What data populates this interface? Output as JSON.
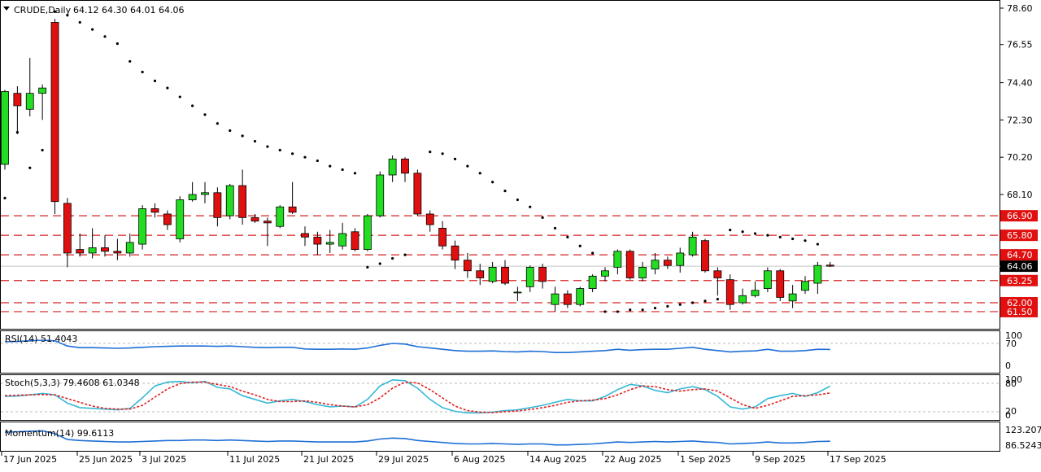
{
  "symbol_header": {
    "symbol": "CRUDE,Daily",
    "ohlc": "64.12 64.30 64.01 64.06"
  },
  "indicators": {
    "rsi": {
      "label": "RSI(14) 51.4043",
      "ticks": [
        "100",
        "70",
        "0"
      ],
      "color": "#1f6fd6"
    },
    "stoch": {
      "label": "Stoch(5,3,3) 79.4608 61.0348",
      "ticks": [
        "100",
        "80",
        "20",
        "0"
      ],
      "main_color": "#35b8d6",
      "signal_color": "#e02020"
    },
    "momentum": {
      "label": "Momentum(14) 99.6113",
      "ticks": [
        "123.207",
        "86.5243"
      ],
      "color": "#1f6fd6"
    }
  },
  "colors": {
    "up": "#22dd22",
    "down": "#e01010",
    "level_line": "#d62020",
    "level_box": "#e01010",
    "sar": "#000000",
    "current_price_box": "#000000"
  },
  "chart_data": {
    "type": "candlestick",
    "title": "CRUDE,Daily",
    "y_axis": {
      "range": [
        60.9,
        78.6
      ],
      "ticks": [
        "78.60",
        "76.55",
        "74.40",
        "72.30",
        "70.20",
        "68.10"
      ]
    },
    "x_axis": {
      "labels": [
        "17 Jun 2025",
        "25 Jun 2025",
        "3 Jul 2025",
        "11 Jul 2025",
        "21 Jul 2025",
        "29 Jul 2025",
        "6 Aug 2025",
        "14 Aug 2025",
        "22 Aug 2025",
        "1 Sep 2025",
        "9 Sep 2025",
        "17 Sep 2025"
      ]
    },
    "current_price": "64.06",
    "levels": [
      "66.90",
      "65.80",
      "64.70",
      "63.25",
      "62.00",
      "61.50"
    ],
    "candles": [
      [
        69.8,
        73.9,
        74.0,
        69.5
      ],
      [
        73.8,
        73.1,
        74.2,
        71.5
      ],
      [
        72.9,
        73.8,
        75.8,
        72.5
      ],
      [
        73.8,
        74.1,
        74.3,
        72.3
      ],
      [
        77.8,
        67.7,
        78.0,
        67.0
      ],
      [
        67.6,
        64.8,
        67.9,
        64.0
      ],
      [
        65.0,
        64.8,
        65.9,
        64.6
      ],
      [
        64.8,
        65.1,
        66.2,
        64.5
      ],
      [
        65.1,
        64.9,
        65.8,
        64.6
      ],
      [
        64.9,
        64.8,
        65.6,
        64.4
      ],
      [
        64.8,
        65.4,
        65.9,
        64.6
      ],
      [
        65.3,
        67.3,
        67.5,
        65.0
      ],
      [
        67.3,
        67.1,
        67.6,
        66.8
      ],
      [
        67.0,
        66.4,
        67.2,
        66.1
      ],
      [
        65.6,
        67.8,
        68.0,
        65.4
      ],
      [
        67.8,
        68.1,
        68.8,
        67.7
      ],
      [
        68.1,
        68.2,
        68.8,
        67.6
      ],
      [
        68.2,
        66.8,
        68.5,
        66.3
      ],
      [
        66.9,
        68.6,
        68.7,
        66.7
      ],
      [
        68.6,
        66.8,
        69.5,
        66.4
      ],
      [
        66.8,
        66.6,
        67.0,
        66.5
      ],
      [
        66.6,
        66.5,
        66.8,
        65.2
      ],
      [
        66.3,
        67.4,
        67.5,
        66.2
      ],
      [
        67.4,
        67.1,
        68.8,
        67.0
      ],
      [
        65.9,
        65.7,
        66.3,
        65.2
      ],
      [
        65.7,
        65.3,
        66.0,
        64.7
      ],
      [
        65.3,
        65.4,
        66.1,
        64.8
      ],
      [
        65.2,
        65.9,
        66.5,
        65.0
      ],
      [
        66.0,
        65.0,
        66.2,
        64.9
      ],
      [
        65.0,
        66.9,
        67.0,
        64.9
      ],
      [
        66.9,
        69.2,
        69.4,
        66.8
      ],
      [
        69.2,
        70.1,
        70.3,
        68.8
      ],
      [
        70.1,
        69.3,
        70.2,
        68.8
      ],
      [
        69.3,
        67.0,
        69.5,
        66.9
      ],
      [
        67.0,
        66.4,
        67.2,
        66.0
      ],
      [
        66.2,
        65.2,
        66.6,
        65.0
      ],
      [
        65.2,
        64.4,
        65.5,
        63.9
      ],
      [
        64.4,
        63.8,
        64.8,
        63.4
      ],
      [
        63.8,
        63.4,
        64.2,
        63.0
      ],
      [
        63.2,
        64.0,
        64.3,
        63.1
      ],
      [
        64.0,
        63.1,
        64.4,
        63.0
      ],
      [
        62.6,
        62.6,
        62.9,
        62.1
      ],
      [
        62.9,
        64.0,
        64.1,
        62.6
      ],
      [
        64.0,
        63.2,
        64.2,
        62.8
      ],
      [
        61.9,
        62.5,
        62.9,
        61.5
      ],
      [
        62.5,
        61.9,
        62.7,
        61.7
      ],
      [
        61.9,
        62.8,
        62.9,
        61.8
      ],
      [
        62.8,
        63.5,
        63.6,
        62.6
      ],
      [
        63.5,
        63.8,
        64.0,
        63.2
      ],
      [
        64.0,
        64.9,
        65.0,
        63.6
      ],
      [
        64.9,
        63.4,
        65.0,
        63.3
      ],
      [
        63.4,
        64.0,
        64.3,
        63.2
      ],
      [
        63.9,
        64.4,
        64.8,
        63.6
      ],
      [
        64.4,
        64.1,
        64.6,
        63.9
      ],
      [
        64.1,
        64.8,
        65.1,
        63.7
      ],
      [
        64.7,
        65.7,
        66.0,
        64.6
      ],
      [
        65.5,
        63.8,
        65.6,
        63.7
      ],
      [
        63.8,
        63.4,
        64.0,
        62.4
      ],
      [
        63.3,
        61.9,
        63.6,
        61.6
      ],
      [
        62.0,
        62.4,
        62.8,
        61.9
      ],
      [
        62.4,
        62.7,
        63.2,
        62.3
      ],
      [
        62.8,
        63.8,
        64.0,
        62.6
      ],
      [
        63.8,
        62.3,
        63.9,
        62.1
      ],
      [
        62.1,
        62.5,
        63.0,
        61.7
      ],
      [
        62.7,
        63.2,
        63.5,
        62.5
      ],
      [
        63.1,
        64.1,
        64.3,
        62.5
      ],
      [
        64.12,
        64.06,
        64.3,
        64.01
      ]
    ],
    "sar": [
      [
        0,
        67.9
      ],
      [
        1,
        71.6
      ],
      [
        2,
        69.6
      ],
      [
        3,
        70.6
      ],
      [
        4,
        78.4
      ],
      [
        5,
        78.2
      ],
      [
        6,
        77.8
      ],
      [
        7,
        77.4
      ],
      [
        8,
        77.0
      ],
      [
        9,
        76.6
      ],
      [
        10,
        75.6
      ],
      [
        11,
        75.0
      ],
      [
        12,
        74.5
      ],
      [
        13,
        74.1
      ],
      [
        14,
        73.6
      ],
      [
        15,
        73.1
      ],
      [
        16,
        72.6
      ],
      [
        17,
        72.1
      ],
      [
        18,
        71.7
      ],
      [
        19,
        71.4
      ],
      [
        20,
        71.1
      ],
      [
        21,
        70.8
      ],
      [
        22,
        70.6
      ],
      [
        23,
        70.4
      ],
      [
        24,
        70.2
      ],
      [
        25,
        70.0
      ],
      [
        26,
        69.7
      ],
      [
        27,
        69.5
      ],
      [
        28,
        69.3
      ],
      [
        29,
        64.0
      ],
      [
        30,
        64.2
      ],
      [
        31,
        64.5
      ],
      [
        32,
        64.7
      ],
      [
        34,
        70.5
      ],
      [
        35,
        70.4
      ],
      [
        36,
        70.1
      ],
      [
        37,
        69.7
      ],
      [
        38,
        69.3
      ],
      [
        39,
        68.8
      ],
      [
        40,
        68.3
      ],
      [
        41,
        67.8
      ],
      [
        42,
        67.4
      ],
      [
        43,
        66.8
      ],
      [
        44,
        66.2
      ],
      [
        45,
        65.7
      ],
      [
        46,
        65.2
      ],
      [
        47,
        64.8
      ],
      [
        48,
        61.5
      ],
      [
        49,
        61.5
      ],
      [
        50,
        61.6
      ],
      [
        51,
        61.6
      ],
      [
        52,
        61.7
      ],
      [
        53,
        61.8
      ],
      [
        54,
        61.9
      ],
      [
        55,
        62.0
      ],
      [
        56,
        62.1
      ],
      [
        57,
        62.2
      ],
      [
        58,
        66.1
      ],
      [
        59,
        66.0
      ],
      [
        60,
        65.9
      ],
      [
        61,
        65.8
      ],
      [
        62,
        65.7
      ],
      [
        63,
        65.6
      ],
      [
        64,
        65.5
      ],
      [
        65,
        65.3
      ]
    ],
    "rsi": [
      75,
      76,
      78,
      80,
      78,
      62,
      57,
      57,
      56,
      55,
      56,
      58,
      60,
      61,
      62,
      62,
      62,
      61,
      62,
      60,
      58,
      57,
      58,
      58,
      53,
      52,
      52,
      53,
      52,
      56,
      64,
      70,
      68,
      60,
      56,
      52,
      48,
      46,
      46,
      47,
      45,
      44,
      46,
      45,
      42,
      42,
      44,
      46,
      48,
      52,
      49,
      51,
      52,
      52,
      55,
      58,
      52,
      48,
      44,
      46,
      47,
      52,
      46,
      46,
      48,
      52,
      51.4
    ],
    "stoch_main": [
      52,
      53,
      56,
      60,
      56,
      34,
      22,
      20,
      18,
      16,
      20,
      48,
      80,
      90,
      92,
      88,
      92,
      76,
      72,
      54,
      44,
      34,
      40,
      44,
      38,
      30,
      24,
      26,
      24,
      44,
      80,
      96,
      94,
      74,
      44,
      22,
      12,
      8,
      8,
      10,
      14,
      16,
      22,
      28,
      36,
      44,
      40,
      40,
      52,
      70,
      84,
      80,
      68,
      62,
      72,
      78,
      70,
      52,
      24,
      18,
      24,
      46,
      54,
      60,
      52,
      62,
      79.5
    ],
    "stoch_signal": [
      54,
      55,
      56,
      57,
      56,
      46,
      36,
      26,
      20,
      18,
      18,
      28,
      50,
      72,
      86,
      90,
      90,
      84,
      78,
      66,
      56,
      44,
      38,
      38,
      40,
      36,
      30,
      26,
      24,
      30,
      48,
      74,
      90,
      88,
      70,
      48,
      26,
      14,
      10,
      9,
      11,
      13,
      17,
      22,
      28,
      36,
      40,
      42,
      46,
      56,
      70,
      80,
      78,
      70,
      66,
      70,
      72,
      66,
      48,
      30,
      20,
      28,
      40,
      52,
      54,
      56,
      61.0
    ],
    "momentum": [
      118,
      119,
      120,
      121,
      115,
      103,
      101,
      100,
      99,
      98,
      98,
      99,
      100,
      101,
      101,
      102,
      102,
      101,
      102,
      101,
      100,
      99,
      100,
      100,
      99,
      98,
      98,
      98,
      98,
      100,
      104,
      106,
      105,
      101,
      99,
      97,
      95,
      94,
      94,
      95,
      94,
      93,
      94,
      94,
      92,
      92,
      93,
      94,
      96,
      98,
      97,
      98,
      99,
      98,
      99,
      100,
      98,
      97,
      94,
      95,
      96,
      98,
      96,
      96,
      97,
      99,
      99.6
    ]
  }
}
